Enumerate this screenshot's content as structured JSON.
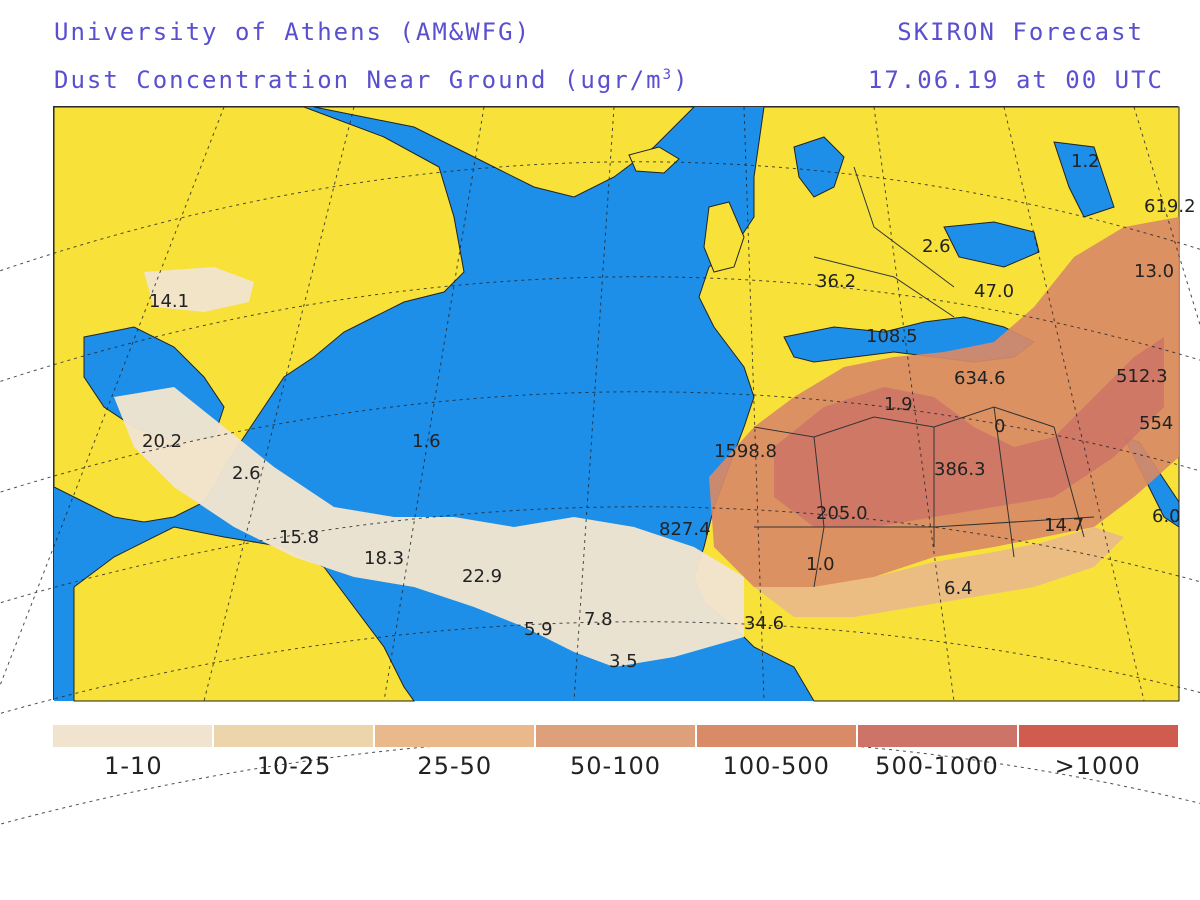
{
  "header": {
    "institution": "University of Athens (AM&WFG)",
    "forecast_name": "SKIRON Forecast",
    "variable": "Dust Concentration Near Ground (ugr/m",
    "variable_unit_exp": "3",
    "variable_close": ")",
    "valid_time": "17.06.19 at 00 UTC"
  },
  "colors": {
    "ocean": "#1e8fe8",
    "land": "#f8e23a",
    "borders": "#222222",
    "grid": "#222222"
  },
  "map_labels": [
    "14.1",
    "20.2",
    "2.6",
    "1.6",
    "15.8",
    "18.3",
    "22.9",
    "5.9",
    "7.8",
    "3.5",
    "827.4",
    "1598.8",
    "1.9",
    "634.6",
    "0",
    "386.3",
    "205.0",
    "1.0",
    "34.6",
    "6.4",
    "14.7",
    "36.2",
    "108.5",
    "47.0",
    "2.6",
    "1.2",
    "619.2",
    "13.0",
    "512.3",
    "554",
    "6.0"
  ],
  "legend": {
    "bins": [
      {
        "label": "1-10",
        "color": "#f1e4cf"
      },
      {
        "label": "10-25",
        "color": "#ecd4ab"
      },
      {
        "label": "25-50",
        "color": "#e9b98c"
      },
      {
        "label": "50-100",
        "color": "#dea07a"
      },
      {
        "label": "100-500",
        "color": "#d98a66"
      },
      {
        "label": "500-1000",
        "color": "#cd7367"
      },
      {
        "label": ">1000",
        "color": "#cf5c4f"
      }
    ]
  }
}
